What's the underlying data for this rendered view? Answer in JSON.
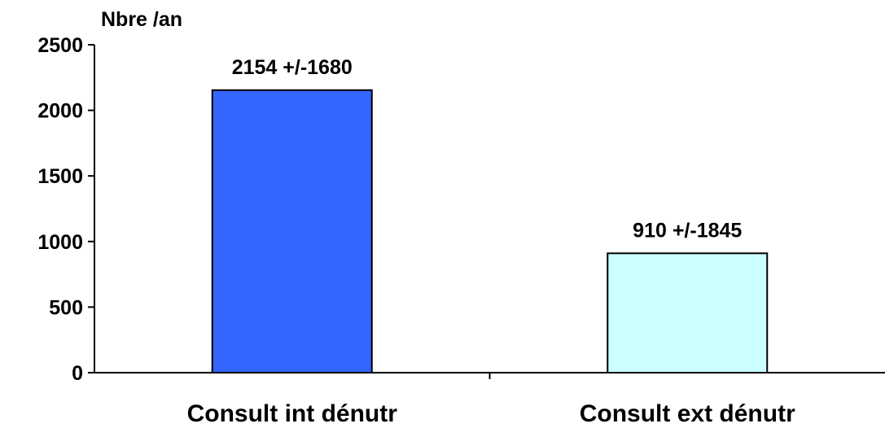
{
  "chart_data": {
    "type": "bar",
    "title": "",
    "xlabel": "",
    "ylabel": "Nbre /an",
    "categories": [
      "Consult int dénutr",
      "Consult ext dénutr"
    ],
    "values": [
      2154,
      910
    ],
    "data_labels": [
      "2154 +/-1680",
      "910 +/-1845"
    ],
    "colors": [
      "#3366FF",
      "#CCFFFF"
    ],
    "ylim": [
      0,
      2500
    ],
    "yticks": [
      0,
      500,
      1000,
      1500,
      2000,
      2500
    ],
    "grid": false,
    "legend": "none"
  }
}
